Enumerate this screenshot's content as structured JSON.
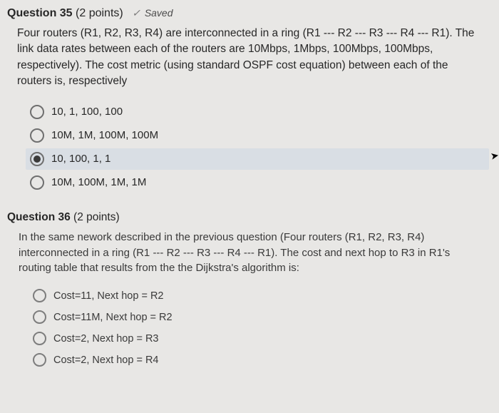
{
  "q35": {
    "header": {
      "label": "Question 35",
      "points": "(2 points)",
      "saved_label": "Saved"
    },
    "body": "Four routers (R1, R2, R3, R4) are interconnected in a ring (R1 --- R2 --- R3 --- R4 --- R1). The link data rates between each of the routers are 10Mbps, 1Mbps, 100Mbps, 100Mbps, respectively). The cost metric (using standard OSPF cost equation) between each of the routers is, respectively",
    "options": [
      {
        "label": "10, 1, 100, 100",
        "selected": false
      },
      {
        "label": "10M, 1M, 100M, 100M",
        "selected": false
      },
      {
        "label": "10, 100, 1, 1",
        "selected": true
      },
      {
        "label": "10M, 100M, 1M, 1M",
        "selected": false
      }
    ]
  },
  "q36": {
    "header": {
      "label": "Question 36",
      "points": "(2 points)"
    },
    "body": "In the same nework described in the previous question (Four routers (R1, R2, R3, R4) interconnected in a ring (R1 --- R2 --- R3 --- R4 --- R1). The cost and next hop to R3 in R1's routing table that results from the the Dijkstra's algorithm is:",
    "options": [
      {
        "label": "Cost=11, Next hop = R2",
        "selected": false
      },
      {
        "label": "Cost=11M, Next hop = R2",
        "selected": false
      },
      {
        "label": "Cost=2, Next hop = R3",
        "selected": false
      },
      {
        "label": "Cost=2, Next hop = R4",
        "selected": false
      }
    ]
  },
  "colors": {
    "background": "#e8e7e5",
    "text": "#272727",
    "selected_bg": "#d9dee4",
    "radio_border": "#6f6f6f",
    "radio_dot": "#3a3a3a"
  }
}
